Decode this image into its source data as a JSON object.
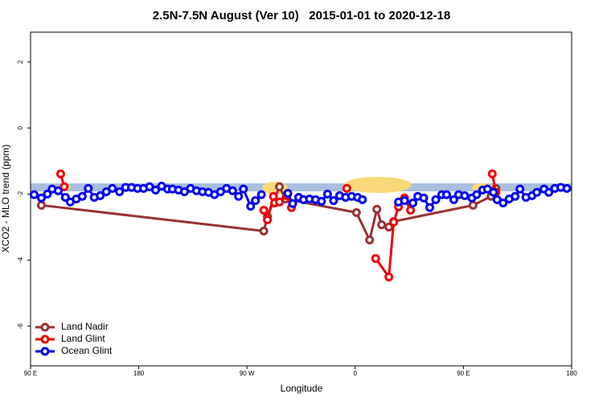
{
  "chart_data": {
    "type": "line",
    "title": "2.5N-7.5N August (Ver 10)   2015-01-01 to 2020-12-18",
    "x_label": "Longitude",
    "y_label": "XCO2 - MLO trend (ppm)",
    "xlim": [
      90,
      540
    ],
    "ylim": [
      -7.2,
      2.9
    ],
    "xticks": [
      {
        "value": 90,
        "label": "90 E"
      },
      180,
      {
        "value": 270,
        "label": "90 W"
      },
      {
        "value": 360,
        "label": "0"
      },
      {
        "value": 450,
        "label": "90 E"
      },
      {
        "value": 540,
        "label": "180"
      }
    ],
    "yticks": [
      -6,
      -4,
      -2,
      0,
      2
    ],
    "legend": "bottom-left",
    "series": [
      {
        "name": "Land Nadir",
        "color": "#993333",
        "x": [
          99,
          284,
          287,
          297,
          302,
          361,
          372,
          378,
          382,
          388,
          392,
          458,
          473,
          477
        ],
        "values": [
          -2.34,
          -3.12,
          -2.68,
          -1.78,
          -2.15,
          -2.56,
          -3.39,
          -2.46,
          -2.93,
          -3.0,
          -2.83,
          -2.34,
          -2.07,
          -1.83
        ]
      },
      {
        "name": "Land Glint",
        "color": "#ee0000",
        "x": [
          115,
          118,
          null,
          284,
          287,
          292,
          293,
          297,
          303,
          307,
          null,
          353,
          null,
          377,
          388,
          392,
          396,
          401,
          406,
          null,
          474,
          477
        ],
        "values": [
          -1.39,
          -1.78,
          null,
          -2.49,
          -2.78,
          -2.07,
          -2.27,
          -2.24,
          -2.05,
          -2.41,
          null,
          -1.83,
          null,
          -3.95,
          -4.51,
          -2.85,
          -2.39,
          -2.12,
          -2.49,
          null,
          -1.39,
          -1.95
        ]
      },
      {
        "name": "Ocean Glint",
        "color": "#0000ee",
        "x": [
          93,
          99,
          104,
          108,
          113,
          119,
          123,
          128,
          133,
          138,
          143,
          148,
          153,
          158,
          164,
          169,
          174,
          179,
          184,
          189,
          194,
          199,
          204,
          208,
          213,
          218,
          223,
          228,
          233,
          238,
          243,
          248,
          253,
          258,
          263,
          267,
          273,
          277,
          282,
          null,
          304,
          308,
          313,
          317,
          322,
          327,
          332,
          337,
          342,
          347,
          352,
          357,
          362,
          366,
          null,
          396,
          401,
          408,
          412,
          417,
          422,
          427,
          432,
          436,
          442,
          446,
          451,
          457,
          461,
          466,
          470,
          475,
          478,
          483,
          488,
          493,
          497,
          502,
          507,
          511,
          517,
          521,
          526,
          531,
          536
        ],
        "values": [
          -2.02,
          -2.12,
          -2.0,
          -1.85,
          -1.9,
          -2.1,
          -2.24,
          -2.15,
          -2.07,
          -1.83,
          -2.1,
          -2.05,
          -1.93,
          -1.83,
          -1.93,
          -1.8,
          -1.8,
          -1.83,
          -1.83,
          -1.78,
          -1.88,
          -1.76,
          -1.85,
          -1.85,
          -1.88,
          -1.93,
          -1.83,
          -1.9,
          -1.93,
          -1.95,
          -2.02,
          -1.93,
          -1.83,
          -1.9,
          -2.07,
          -1.85,
          -2.37,
          -2.2,
          -2.02,
          null,
          -1.98,
          -2.29,
          -2.1,
          -2.17,
          -2.15,
          -2.17,
          -2.22,
          -2.0,
          -2.2,
          -2.05,
          -2.1,
          -2.07,
          -2.1,
          -2.17,
          null,
          -2.24,
          -2.2,
          -2.27,
          -2.07,
          -2.12,
          -2.41,
          -2.17,
          -2.02,
          -2.02,
          -2.17,
          -2.02,
          -2.05,
          -2.12,
          -2.02,
          -1.88,
          -1.85,
          -1.95,
          -2.17,
          -2.27,
          -2.15,
          -2.07,
          -1.85,
          -2.1,
          -2.05,
          -1.95,
          -1.85,
          -1.95,
          -1.83,
          -1.8,
          -1.83
        ]
      }
    ]
  }
}
